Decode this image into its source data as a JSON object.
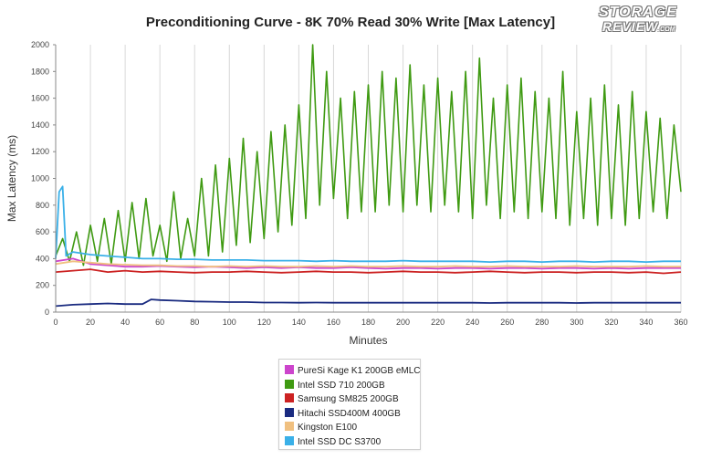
{
  "chart_data": {
    "type": "line",
    "title": "Preconditioning Curve - 8K 70% Read 30% Write [Max Latency]",
    "xlabel": "Minutes",
    "ylabel": "Max Latency (ms)",
    "xlim": [
      0,
      360
    ],
    "ylim": [
      0,
      2000
    ],
    "xticks": [
      0,
      20,
      40,
      60,
      80,
      100,
      120,
      140,
      160,
      180,
      200,
      220,
      240,
      260,
      280,
      300,
      320,
      340,
      360
    ],
    "yticks": [
      0,
      200,
      400,
      600,
      800,
      1000,
      1200,
      1400,
      1600,
      1800,
      2000
    ],
    "grid": "vertical",
    "legend_position": "bottom",
    "series": [
      {
        "name": "PureSi Kage K1 200GB eMLC",
        "color": "#cc44cc",
        "x": [
          0,
          10,
          20,
          30,
          40,
          50,
          60,
          70,
          80,
          90,
          100,
          110,
          120,
          130,
          140,
          150,
          160,
          170,
          180,
          190,
          200,
          210,
          220,
          230,
          240,
          250,
          260,
          270,
          280,
          290,
          300,
          310,
          320,
          330,
          340,
          350,
          360
        ],
        "y": [
          380,
          400,
          360,
          350,
          340,
          340,
          345,
          340,
          335,
          340,
          335,
          330,
          335,
          330,
          335,
          330,
          330,
          335,
          330,
          325,
          330,
          330,
          325,
          330,
          330,
          325,
          330,
          330,
          325,
          330,
          330,
          325,
          330,
          325,
          330,
          330,
          330
        ]
      },
      {
        "name": "Intel SSD 710 200GB",
        "color": "#3f9a12",
        "x": [
          0,
          4,
          8,
          12,
          16,
          20,
          24,
          28,
          32,
          36,
          40,
          44,
          48,
          52,
          56,
          60,
          64,
          68,
          72,
          76,
          80,
          84,
          88,
          92,
          96,
          100,
          104,
          108,
          112,
          116,
          120,
          124,
          128,
          132,
          136,
          140,
          144,
          148,
          152,
          156,
          160,
          164,
          168,
          172,
          176,
          180,
          184,
          188,
          192,
          196,
          200,
          204,
          208,
          212,
          216,
          220,
          224,
          228,
          232,
          236,
          240,
          244,
          248,
          252,
          256,
          260,
          264,
          268,
          272,
          276,
          280,
          284,
          288,
          292,
          296,
          300,
          304,
          308,
          312,
          316,
          320,
          324,
          328,
          332,
          336,
          340,
          344,
          348,
          352,
          356,
          360
        ],
        "y": [
          420,
          550,
          380,
          600,
          350,
          650,
          380,
          700,
          360,
          760,
          380,
          820,
          400,
          850,
          420,
          650,
          380,
          900,
          400,
          700,
          420,
          1000,
          420,
          1100,
          450,
          1150,
          500,
          1300,
          520,
          1200,
          550,
          1350,
          600,
          1400,
          650,
          1550,
          700,
          2000,
          800,
          1800,
          850,
          1600,
          700,
          1650,
          750,
          1700,
          750,
          1800,
          800,
          1750,
          750,
          1850,
          800,
          1700,
          750,
          1750,
          800,
          1650,
          750,
          1800,
          700,
          1900,
          800,
          1600,
          700,
          1700,
          750,
          1750,
          700,
          1650,
          750,
          1600,
          700,
          1800,
          650,
          1500,
          700,
          1600,
          650,
          1700,
          700,
          1550,
          650,
          1650,
          700,
          1500,
          750,
          1450,
          700,
          1400,
          900
        ]
      },
      {
        "name": "Samsung SM825 200GB",
        "color": "#cc2222",
        "x": [
          0,
          10,
          20,
          30,
          40,
          50,
          60,
          70,
          80,
          90,
          100,
          110,
          120,
          130,
          140,
          150,
          160,
          170,
          180,
          190,
          200,
          210,
          220,
          230,
          240,
          250,
          260,
          270,
          280,
          290,
          300,
          310,
          320,
          330,
          340,
          350,
          360
        ],
        "y": [
          300,
          310,
          320,
          300,
          310,
          300,
          305,
          300,
          295,
          300,
          300,
          305,
          300,
          295,
          300,
          305,
          300,
          300,
          295,
          300,
          305,
          300,
          300,
          295,
          300,
          305,
          300,
          295,
          300,
          300,
          295,
          300,
          300,
          295,
          300,
          290,
          300
        ]
      },
      {
        "name": "Hitachi SSD400M 400GB",
        "color": "#1a2b80",
        "x": [
          0,
          10,
          20,
          30,
          40,
          50,
          55,
          60,
          70,
          80,
          90,
          100,
          110,
          120,
          130,
          140,
          150,
          160,
          170,
          180,
          190,
          200,
          210,
          220,
          230,
          240,
          250,
          260,
          270,
          280,
          290,
          300,
          310,
          320,
          330,
          340,
          350,
          360
        ],
        "y": [
          45,
          55,
          60,
          65,
          60,
          60,
          95,
          90,
          85,
          80,
          78,
          75,
          75,
          72,
          72,
          70,
          72,
          70,
          70,
          70,
          70,
          70,
          70,
          70,
          70,
          70,
          68,
          70,
          70,
          70,
          70,
          68,
          70,
          70,
          70,
          70,
          70,
          70
        ]
      },
      {
        "name": "Kingston E100",
        "color": "#f0c080",
        "x": [
          0,
          10,
          20,
          30,
          40,
          50,
          60,
          70,
          80,
          90,
          100,
          110,
          120,
          130,
          140,
          150,
          160,
          170,
          180,
          190,
          200,
          210,
          220,
          230,
          240,
          250,
          260,
          270,
          280,
          290,
          300,
          310,
          320,
          330,
          340,
          350,
          360
        ],
        "y": [
          360,
          380,
          370,
          360,
          355,
          350,
          350,
          345,
          345,
          340,
          345,
          340,
          345,
          340,
          340,
          345,
          340,
          345,
          340,
          340,
          345,
          340,
          340,
          345,
          340,
          340,
          345,
          340,
          340,
          340,
          345,
          340,
          340,
          340,
          345,
          340,
          340
        ]
      },
      {
        "name": "Intel SSD DC S3700",
        "color": "#3ab0e8",
        "x": [
          0,
          2,
          4,
          6,
          10,
          20,
          30,
          40,
          50,
          60,
          70,
          80,
          90,
          100,
          110,
          120,
          130,
          140,
          150,
          160,
          170,
          180,
          190,
          200,
          210,
          220,
          230,
          240,
          250,
          260,
          270,
          280,
          290,
          300,
          310,
          320,
          330,
          340,
          350,
          360
        ],
        "y": [
          400,
          900,
          940,
          420,
          450,
          430,
          420,
          410,
          400,
          400,
          395,
          395,
          390,
          390,
          390,
          385,
          385,
          385,
          380,
          385,
          380,
          380,
          380,
          385,
          380,
          380,
          380,
          380,
          375,
          380,
          380,
          375,
          380,
          380,
          375,
          380,
          380,
          375,
          380,
          380
        ]
      }
    ]
  },
  "logo": {
    "line1": "STORAGE",
    "line2": "REVIEW",
    "suffix": ".COM"
  }
}
